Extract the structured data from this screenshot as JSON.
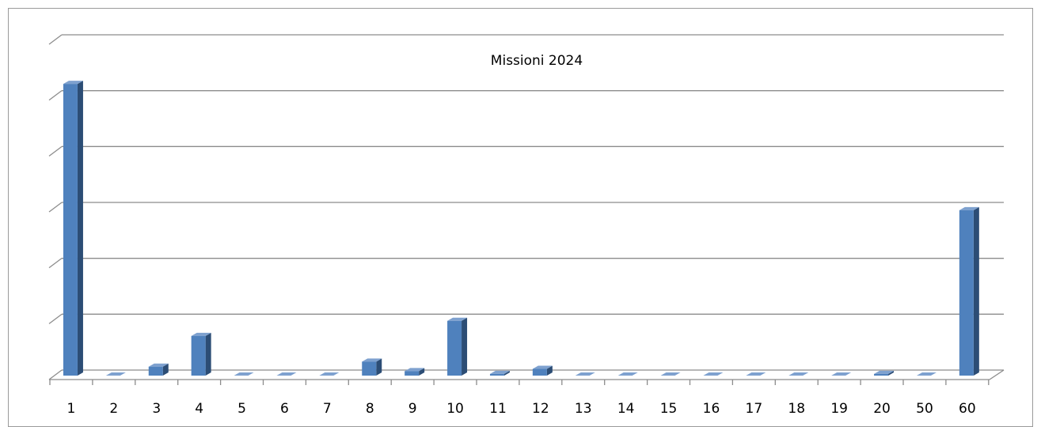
{
  "chart_data": {
    "type": "bar",
    "title": "Missioni 2024",
    "categories": [
      "1",
      "2",
      "3",
      "4",
      "5",
      "6",
      "7",
      "8",
      "9",
      "10",
      "11",
      "12",
      "13",
      "14",
      "15",
      "16",
      "17",
      "18",
      "19",
      "20",
      "50",
      "60"
    ],
    "values": [
      5.22,
      0,
      0.16,
      0.71,
      0,
      0,
      0,
      0.25,
      0.08,
      0.98,
      0.03,
      0.12,
      0,
      0,
      0,
      0,
      0,
      0,
      0,
      0.03,
      0,
      2.96
    ],
    "color": "#4f81bd",
    "ylim": [
      0,
      6
    ],
    "yticks": [
      0,
      1,
      2,
      3,
      4,
      5,
      6
    ],
    "grid": true
  }
}
